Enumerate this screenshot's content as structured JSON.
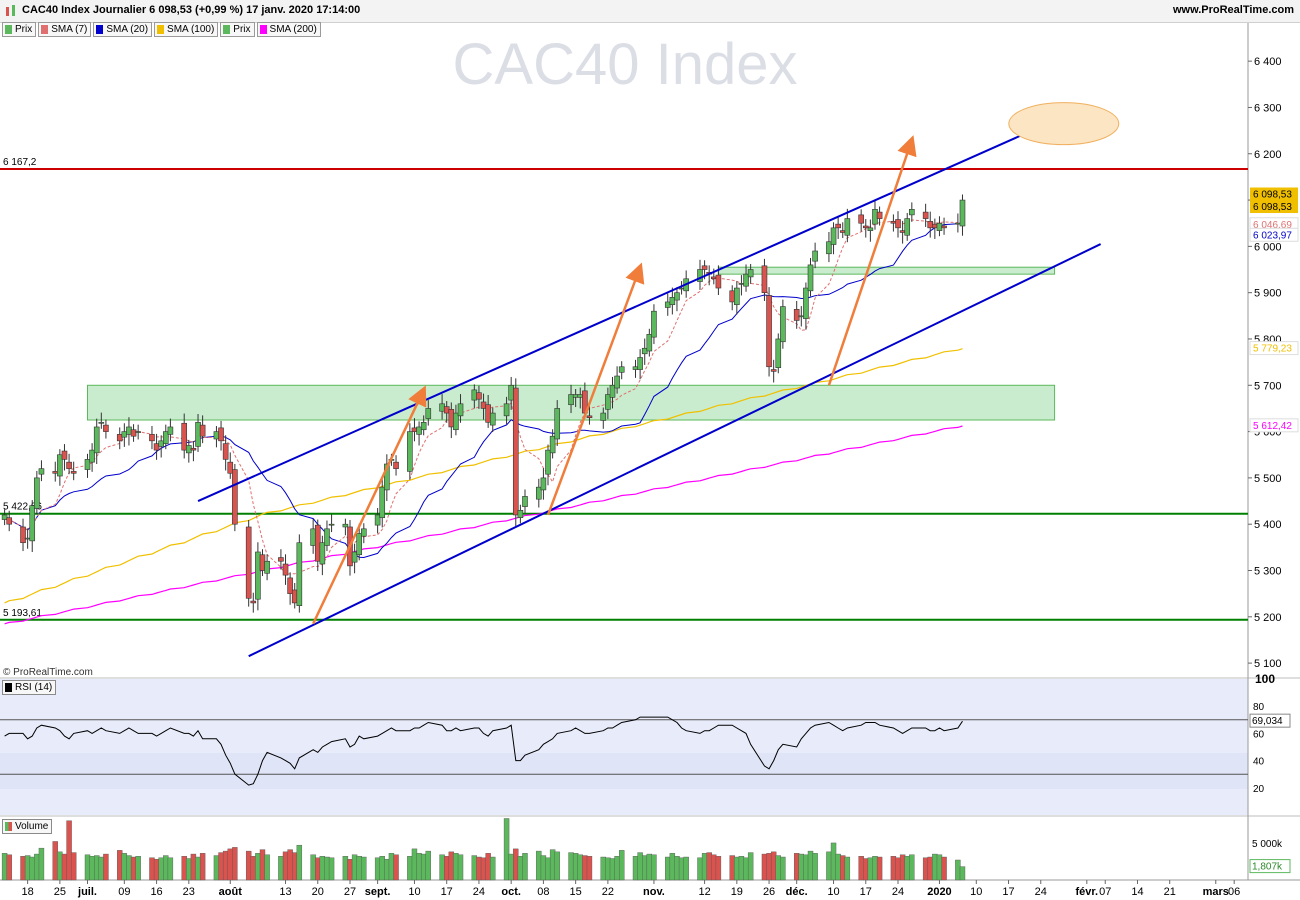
{
  "header": {
    "title": "CAC40 Index Journalier 6 098,53 (+0,99 %) 17 janv. 2020 17:14:00",
    "site": "www.ProRealTime.com"
  },
  "legend": [
    {
      "label": "Prix",
      "color": "#5cb85c"
    },
    {
      "label": "SMA (7)",
      "color": "#e07070"
    },
    {
      "label": "SMA (20)",
      "color": "#0000cc"
    },
    {
      "label": "SMA (100)",
      "color": "#f0c000"
    },
    {
      "label": "Prix",
      "color": "#5cb85c"
    },
    {
      "label": "SMA (200)",
      "color": "#ff00ff"
    }
  ],
  "watermark": "CAC40 Index",
  "copyright": "© ProRealTime.com",
  "rsi_label": "RSI (14)",
  "volume_label": "Volume",
  "colors": {
    "up": "#5cb85c",
    "down": "#d9534f",
    "sma7": "#e07070",
    "sma20": "#0000cc",
    "sma100": "#f0c000",
    "sma200": "#ff00ff",
    "resistance": "#cc0000",
    "support": "#008000",
    "channel": "#0000cc",
    "arrows": "#f07d3a",
    "zone": "#c9eccf",
    "target": "#fce5c2"
  },
  "chart_data": {
    "type": "candlestick",
    "y_ticks": [
      "6 400",
      "6 300",
      "6 200",
      "6 100",
      "6 000",
      "5 900",
      "5 800",
      "5 700",
      "5 600",
      "5 500",
      "5 400",
      "5 300",
      "5 200",
      "5 100"
    ],
    "y_tick_values": [
      6400,
      6300,
      6200,
      6100,
      6000,
      5900,
      5800,
      5700,
      5600,
      5500,
      5400,
      5300,
      5200,
      5100
    ],
    "ylim": [
      5070,
      6450
    ],
    "x_ticks": [
      {
        "label": "18",
        "date": "2019-06-18",
        "bold": false
      },
      {
        "label": "25",
        "date": "2019-06-25",
        "bold": false
      },
      {
        "label": "juil.",
        "date": "2019-07-01",
        "bold": true
      },
      {
        "label": "09",
        "date": "2019-07-09",
        "bold": false
      },
      {
        "label": "16",
        "date": "2019-07-16",
        "bold": false
      },
      {
        "label": "23",
        "date": "2019-07-23",
        "bold": false
      },
      {
        "label": "août",
        "date": "2019-08-01",
        "bold": true
      },
      {
        "label": "13",
        "date": "2019-08-13",
        "bold": false
      },
      {
        "label": "20",
        "date": "2019-08-20",
        "bold": false
      },
      {
        "label": "27",
        "date": "2019-08-27",
        "bold": false
      },
      {
        "label": "sept.",
        "date": "2019-09-02",
        "bold": true
      },
      {
        "label": "10",
        "date": "2019-09-10",
        "bold": false
      },
      {
        "label": "17",
        "date": "2019-09-17",
        "bold": false
      },
      {
        "label": "24",
        "date": "2019-09-24",
        "bold": false
      },
      {
        "label": "oct.",
        "date": "2019-10-01",
        "bold": true
      },
      {
        "label": "08",
        "date": "2019-10-08",
        "bold": false
      },
      {
        "label": "15",
        "date": "2019-10-15",
        "bold": false
      },
      {
        "label": "22",
        "date": "2019-10-22",
        "bold": false
      },
      {
        "label": "nov.",
        "date": "2019-11-01",
        "bold": true
      },
      {
        "label": "12",
        "date": "2019-11-12",
        "bold": false
      },
      {
        "label": "19",
        "date": "2019-11-19",
        "bold": false
      },
      {
        "label": "26",
        "date": "2019-11-26",
        "bold": false
      },
      {
        "label": "déc.",
        "date": "2019-12-02",
        "bold": true
      },
      {
        "label": "10",
        "date": "2019-12-10",
        "bold": false
      },
      {
        "label": "17",
        "date": "2019-12-17",
        "bold": false
      },
      {
        "label": "24",
        "date": "2019-12-24",
        "bold": false
      },
      {
        "label": "2020",
        "date": "2020-01-02",
        "bold": true
      },
      {
        "label": "10",
        "date": "2020-01-10",
        "bold": false
      },
      {
        "label": "17",
        "date": "2020-01-17",
        "bold": false
      },
      {
        "label": "24",
        "date": "2020-01-24",
        "bold": false
      },
      {
        "label": "févr.",
        "date": "2020-02-03",
        "bold": true
      },
      {
        "label": "07",
        "date": "2020-02-07",
        "bold": false
      },
      {
        "label": "14",
        "date": "2020-02-14",
        "bold": false
      },
      {
        "label": "21",
        "date": "2020-02-21",
        "bold": false
      },
      {
        "label": "mars",
        "date": "2020-03-02",
        "bold": true
      },
      {
        "label": "06",
        "date": "2020-03-06",
        "bold": false
      }
    ],
    "xlim": [
      "2019-06-12",
      "2020-03-09"
    ],
    "closes": [
      5420,
      5400,
      5360,
      5370,
      5440,
      5500,
      5520,
      5510,
      5550,
      5540,
      5520,
      5510,
      5540,
      5560,
      5610,
      5620,
      5600,
      5580,
      5600,
      5610,
      5590,
      5600,
      5580,
      5560,
      5580,
      5600,
      5610,
      5560,
      5570,
      5560,
      5620,
      5590,
      5600,
      5580,
      5540,
      5510,
      5400,
      5240,
      5230,
      5340,
      5300,
      5320,
      5320,
      5290,
      5250,
      5230,
      5360,
      5390,
      5320,
      5360,
      5390,
      5400,
      5400,
      5310,
      5340,
      5380,
      5390,
      5420,
      5480,
      5530,
      5540,
      5520,
      5600,
      5600,
      5610,
      5620,
      5650,
      5660,
      5640,
      5610,
      5640,
      5660,
      5690,
      5670,
      5650,
      5620,
      5640,
      5660,
      5700,
      5420,
      5430,
      5460,
      5480,
      5500,
      5560,
      5590,
      5650,
      5680,
      5680,
      5680,
      5640,
      5630,
      5640,
      5680,
      5700,
      5720,
      5740,
      5740,
      5760,
      5780,
      5810,
      5860,
      5880,
      5890,
      5900,
      5910,
      5930,
      5950,
      5950,
      5940,
      5930,
      5910,
      5880,
      5910,
      5920,
      5940,
      5950,
      5900,
      5740,
      5730,
      5800,
      5870,
      5840,
      5850,
      5910,
      5960,
      5990,
      6010,
      6040,
      6040,
      6030,
      6060,
      6050,
      6040,
      6040,
      6080,
      6060,
      6050,
      6040,
      6030,
      6060,
      6080,
      6060,
      6040,
      6040,
      6050,
      6040,
      6050,
      6100
    ],
    "overlays": {
      "resistance": 6167.2,
      "support_1": 5422.66,
      "support_2": 5193.61,
      "zones": [
        [
          5625,
          5700
        ],
        [
          5940,
          5955
        ]
      ]
    },
    "price_labels": {
      "resistance": "6 167,2",
      "support_1": "5 422,66",
      "support_2": "5 193,61",
      "last": "6 098,53",
      "last2": "6 098,53",
      "sma7": "6 046,69",
      "sma20": "6 023,97",
      "sma100": "5 779,23",
      "sma200": "5 612,42"
    },
    "rsi": {
      "value_label": "69,034",
      "ticks": [
        "100",
        "80",
        "60",
        "40",
        "20"
      ],
      "tick_values": [
        100,
        80,
        60,
        40,
        20
      ],
      "levels": [
        70,
        30
      ],
      "ylim": [
        0,
        100
      ],
      "values": [
        58,
        60,
        60,
        56,
        58,
        64,
        66,
        64,
        62,
        58,
        56,
        60,
        62,
        60,
        62,
        64,
        62,
        60,
        62,
        64,
        62,
        60,
        60,
        58,
        60,
        62,
        64,
        60,
        60,
        58,
        62,
        56,
        56,
        52,
        44,
        38,
        30,
        22,
        23,
        30,
        40,
        46,
        42,
        40,
        38,
        34,
        42,
        48,
        46,
        50,
        52,
        54,
        56,
        50,
        52,
        58,
        56,
        58,
        60,
        62,
        64,
        62,
        62,
        64,
        64,
        66,
        68,
        66,
        62,
        62,
        64,
        62,
        64,
        64,
        60,
        58,
        62,
        64,
        66,
        40,
        40,
        44,
        48,
        52,
        54,
        56,
        60,
        62,
        64,
        62,
        60,
        60,
        62,
        64,
        64,
        66,
        68,
        70,
        72,
        72,
        72,
        72,
        72,
        70,
        68,
        64,
        62,
        60,
        62,
        62,
        64,
        66,
        66,
        64,
        62,
        60,
        52,
        36,
        34,
        40,
        48,
        52,
        50,
        56,
        60,
        64,
        66,
        68,
        66,
        64,
        62,
        64,
        66,
        68,
        68,
        68,
        66,
        64,
        62,
        60,
        62,
        64,
        64,
        62,
        62,
        64,
        62,
        64,
        69
      ]
    },
    "volume": {
      "value_label": "1,807k",
      "tick_label": "5 000k",
      "tick_value": 5000,
      "ylim": [
        0,
        8500
      ],
      "values": [
        3600,
        3400,
        3200,
        3300,
        3100,
        3500,
        4300,
        5200,
        3800,
        3500,
        8000,
        3700,
        3400,
        3200,
        3300,
        3100,
        3500,
        4000,
        3600,
        3300,
        3100,
        3200,
        3000,
        2800,
        3000,
        3300,
        3000,
        3200,
        2900,
        3500,
        3100,
        3600,
        3300,
        3700,
        3900,
        4200,
        4400,
        3900,
        3200,
        3600,
        4100,
        3400,
        3200,
        3800,
        4100,
        3700,
        4700,
        3400,
        3000,
        3200,
        3100,
        3000,
        3200,
        2800,
        3400,
        3200,
        3100,
        3000,
        3200,
        2800,
        3600,
        3400,
        3200,
        4200,
        3600,
        3500,
        3900,
        3400,
        3200,
        3800,
        3600,
        3400,
        3300,
        3100,
        3000,
        3600,
        3100,
        8300,
        3500,
        4200,
        3200,
        3600,
        3900,
        3300,
        3000,
        4100,
        3800,
        3700,
        3600,
        3400,
        3300,
        3200,
        3100,
        3000,
        2900,
        3200,
        4000,
        3200,
        3700,
        3300,
        3500,
        3400,
        3100,
        3600,
        3200,
        3000,
        3100,
        3000,
        3600,
        3700,
        3400,
        3200,
        3300,
        3100,
        3200,
        3000,
        3700,
        3500,
        3600,
        3800,
        3300,
        3100,
        3600,
        3500,
        3400,
        3900,
        3600,
        3800,
        5000,
        3500,
        3300,
        3100,
        3200,
        2900,
        3000,
        3200,
        3100,
        3200,
        3000,
        3400,
        3200,
        3400,
        3000,
        3100,
        3500,
        3400,
        3100,
        2700,
        1807
      ]
    }
  }
}
